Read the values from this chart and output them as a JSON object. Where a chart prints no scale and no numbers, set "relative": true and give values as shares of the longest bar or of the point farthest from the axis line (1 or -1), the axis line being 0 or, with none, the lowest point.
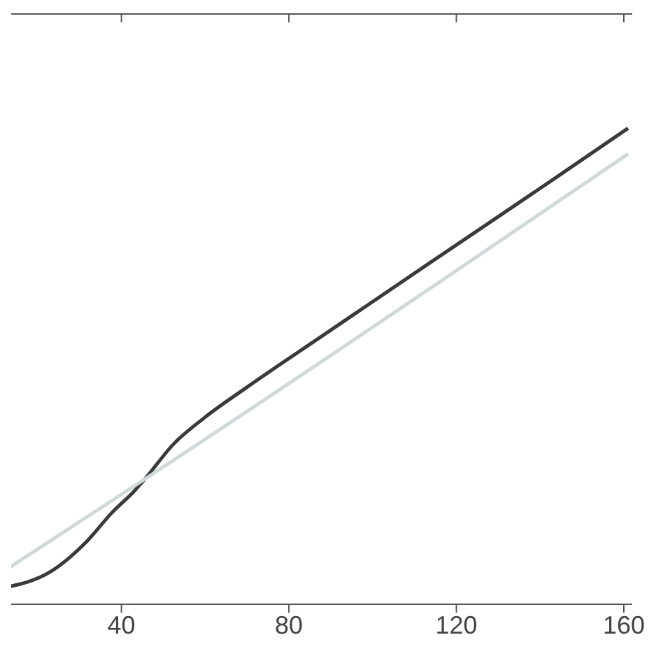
{
  "chart_data": {
    "type": "line",
    "relative": true,
    "xlim": [
      11,
      162
    ],
    "xticks": [
      40,
      80,
      120,
      160
    ],
    "grid": false,
    "legend": false,
    "marker": "none",
    "line_style": "solid",
    "series": [
      {
        "color": "#3a3a3a",
        "x": [
          12.7,
          23,
          31.5,
          37.8,
          43.1,
          45.6,
          52.5,
          59.7,
          70,
          88,
          117,
          144.4,
          161
        ],
        "values": [
          0.036,
          0.068,
          0.13,
          0.193,
          0.238,
          0.263,
          0.337,
          0.391,
          0.456,
          0.564,
          0.737,
          0.9,
          1
        ]
      },
      {
        "color": "#cfd9da",
        "x": [
          12.7,
          45.6,
          161
        ],
        "values": [
          0.074,
          0.263,
          0.946
        ]
      }
    ]
  }
}
